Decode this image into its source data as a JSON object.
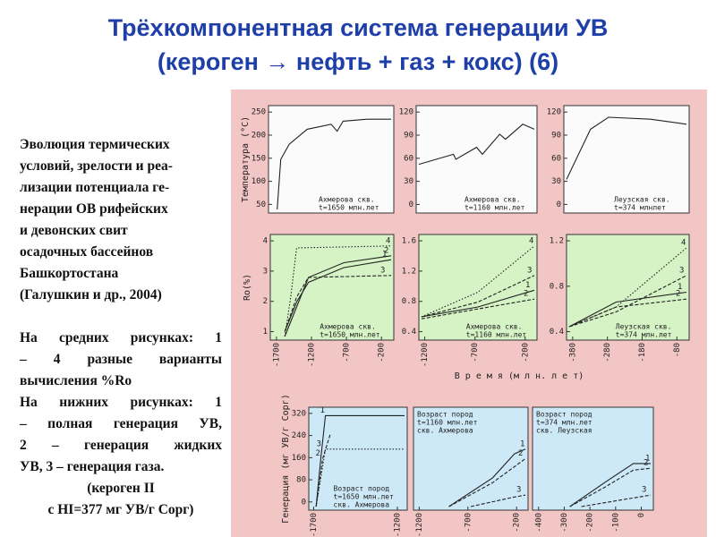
{
  "title": [
    "Трёхкомпонентная система генерации УВ",
    "(кероген → нефть + газ + кокс) (6)"
  ],
  "text": [
    [
      "Эволюция термических",
      "условий, зрелости и реа-",
      "лизации потенциала ге-",
      "нерации ОВ рифейских",
      "и девонских свит",
      "осадочных бассейнов",
      "Башкортостана",
      "(Галушкин и др., 2004)"
    ],
    [
      "На средних рисунках: 1",
      "– 4 разные варианты",
      "вычисления %Ro"
    ],
    [
      "На нижних рисунках: 1",
      "– полная генерация УВ,",
      "2 – генерация жидких",
      "УВ, 3 – генерация газа."
    ],
    [
      "(кероген II",
      "с HI=377 мг УВ/г Сорг)"
    ]
  ],
  "figure": {
    "xlabel": "В р е м я (м л н. л е т)",
    "rows": [
      {
        "ylabel": "Температура (°C)",
        "panels": [
          {
            "yticks": [
              50,
              100,
              150,
              200,
              250
            ],
            "xticks": [],
            "caption": [
              "Ахмерова скв.",
              "t=1650 млн.лет"
            ],
            "curve_labels": []
          },
          {
            "yticks": [
              0,
              30,
              60,
              90,
              120
            ],
            "xticks": [],
            "caption": [
              "Ахмерова скв.",
              "t=1160 млн.лет"
            ],
            "curve_labels": []
          },
          {
            "yticks": [
              0,
              30,
              60,
              90,
              120
            ],
            "xticks": [],
            "caption": [
              "Леузская скв.",
              "t=374 млнлет"
            ],
            "curve_labels": []
          }
        ]
      },
      {
        "ylabel": "Ro(%)",
        "panels": [
          {
            "yticks": [
              1,
              2,
              3,
              4
            ],
            "xticks": [
              -1700,
              -1200,
              -700,
              -200
            ],
            "caption": [
              "Ахмерова скв.",
              "t=1650 млн.лет"
            ],
            "curve_labels": [
              "4",
              "2",
              "1",
              "3"
            ]
          },
          {
            "yticks": [
              0.4,
              0.8,
              1.2,
              1.6
            ],
            "xticks": [
              -1200,
              -700,
              -200
            ],
            "caption": [
              "Ахмерова скв.",
              "t=1160 млн.лет"
            ],
            "curve_labels": [
              "4",
              "3",
              "1",
              "2"
            ]
          },
          {
            "yticks": [
              0.4,
              0.8,
              1.2
            ],
            "xticks": [
              -380,
              -280,
              -180,
              -80
            ],
            "caption": [
              "Леузская скв.",
              "t=374 млн.лет"
            ],
            "curve_labels": [
              "4",
              "3",
              "1",
              "2"
            ]
          }
        ]
      },
      {
        "ylabel": "Генерация (мг УВ/г Сорг)",
        "panels": [
          {
            "yticks": [
              0,
              80,
              160,
              240,
              320
            ],
            "xticks": [
              -1700,
              -1200
            ],
            "caption": [
              "Возраст пород",
              "t=1650 млн.лет",
              "скв. Ахмерова"
            ],
            "curve_labels": [
              "1",
              "2",
              "3"
            ]
          },
          {
            "yticks": [],
            "xticks": [
              -1200,
              -700,
              -200
            ],
            "caption": [
              "Возраст пород",
              "t=1160 млн.лет",
              "скв. Ахмерова"
            ],
            "curve_labels": [
              "1",
              "2",
              "3"
            ]
          },
          {
            "yticks": [],
            "xticks": [
              -400,
              -300,
              -200,
              -100,
              0
            ],
            "caption": [
              "Возраст пород",
              "t=374 млн.лет",
              "скв. Леузская"
            ],
            "curve_labels": [
              "1",
              "2",
              "3"
            ]
          }
        ]
      }
    ]
  }
}
